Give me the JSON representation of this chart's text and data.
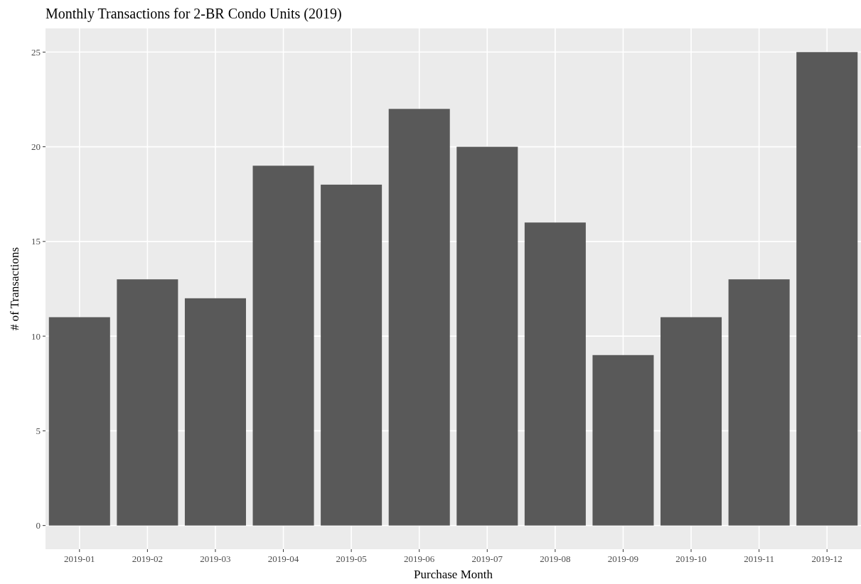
{
  "chart_data": {
    "type": "bar",
    "title": "Monthly Transactions for 2-BR Condo Units (2019)",
    "xlabel": "Purchase Month",
    "ylabel": "# of Transactions",
    "categories": [
      "2019-01",
      "2019-02",
      "2019-03",
      "2019-04",
      "2019-05",
      "2019-06",
      "2019-07",
      "2019-08",
      "2019-09",
      "2019-10",
      "2019-11",
      "2019-12"
    ],
    "values": [
      11,
      13,
      12,
      19,
      18,
      22,
      20,
      16,
      9,
      11,
      13,
      25
    ],
    "color": "#595959",
    "ylim": [
      -1.25,
      26.25
    ],
    "yticks": [
      0,
      5,
      10,
      15,
      20,
      25
    ],
    "grid": true
  }
}
